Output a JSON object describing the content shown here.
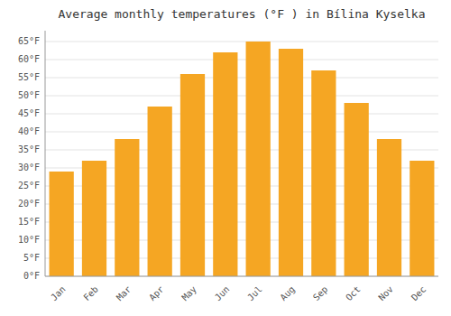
{
  "chart_data": {
    "type": "bar",
    "title": "Average monthly temperatures (°F ) in Bílina Kyselka",
    "categories": [
      "Jan",
      "Feb",
      "Mar",
      "Apr",
      "May",
      "Jun",
      "Jul",
      "Aug",
      "Sep",
      "Oct",
      "Nov",
      "Dec"
    ],
    "values": [
      29,
      32,
      38,
      47,
      56,
      62,
      65,
      63,
      57,
      48,
      38,
      32
    ],
    "color": "#F5A623",
    "ylim": [
      0,
      68
    ],
    "yticks": [
      {
        "value": 0,
        "label": "0°F"
      },
      {
        "value": 5,
        "label": "5°F"
      },
      {
        "value": 10,
        "label": "10°F"
      },
      {
        "value": 15,
        "label": "15°F"
      },
      {
        "value": 20,
        "label": "20°F"
      },
      {
        "value": 25,
        "label": "25°F"
      },
      {
        "value": 30,
        "label": "30°F"
      },
      {
        "value": 35,
        "label": "35°F"
      },
      {
        "value": 40,
        "label": "40°F"
      },
      {
        "value": 45,
        "label": "45°F"
      },
      {
        "value": 50,
        "label": "50°F"
      },
      {
        "value": 55,
        "label": "55°F"
      },
      {
        "value": 60,
        "label": "60°F"
      },
      {
        "value": 65,
        "label": "65°F"
      }
    ],
    "grid": true
  }
}
